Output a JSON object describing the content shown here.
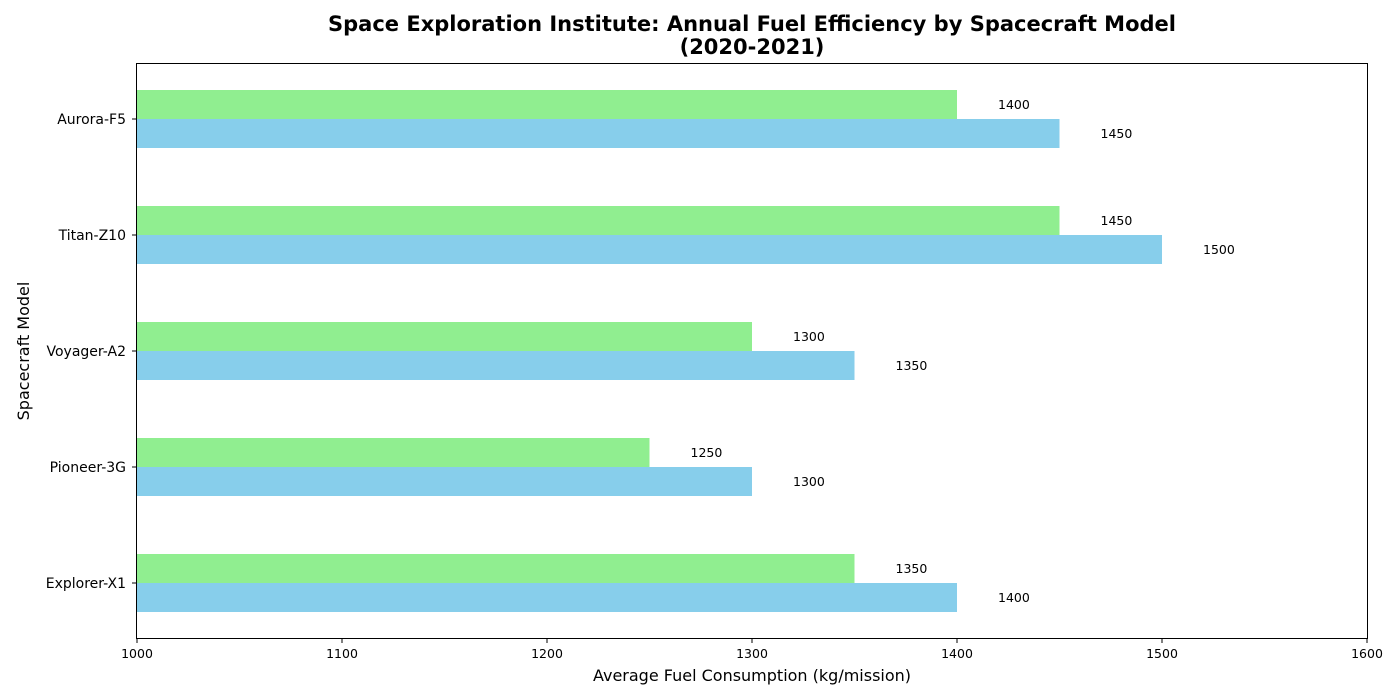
{
  "chart_data": {
    "type": "bar",
    "orientation": "horizontal",
    "title_lines": [
      "Space Exploration Institute: Annual Fuel Efficiency by Spacecraft Model",
      "(2020-2021)"
    ],
    "xlabel": "Average Fuel Consumption (kg/mission)",
    "ylabel": "Spacecraft Model",
    "xlim": [
      1000,
      1600
    ],
    "xticks": [
      1000,
      1100,
      1200,
      1300,
      1400,
      1500,
      1600
    ],
    "categories": [
      "Explorer-X1",
      "Pioneer-3G",
      "Voyager-A2",
      "Titan-Z10",
      "Aurora-F5"
    ],
    "series": [
      {
        "key": "series-a",
        "color": "#90ee90",
        "values": [
          1350,
          1250,
          1300,
          1450,
          1400
        ]
      },
      {
        "key": "series-b",
        "color": "#87ceeb",
        "values": [
          1400,
          1300,
          1350,
          1500,
          1450
        ]
      }
    ],
    "legend": "none",
    "grid": false
  }
}
